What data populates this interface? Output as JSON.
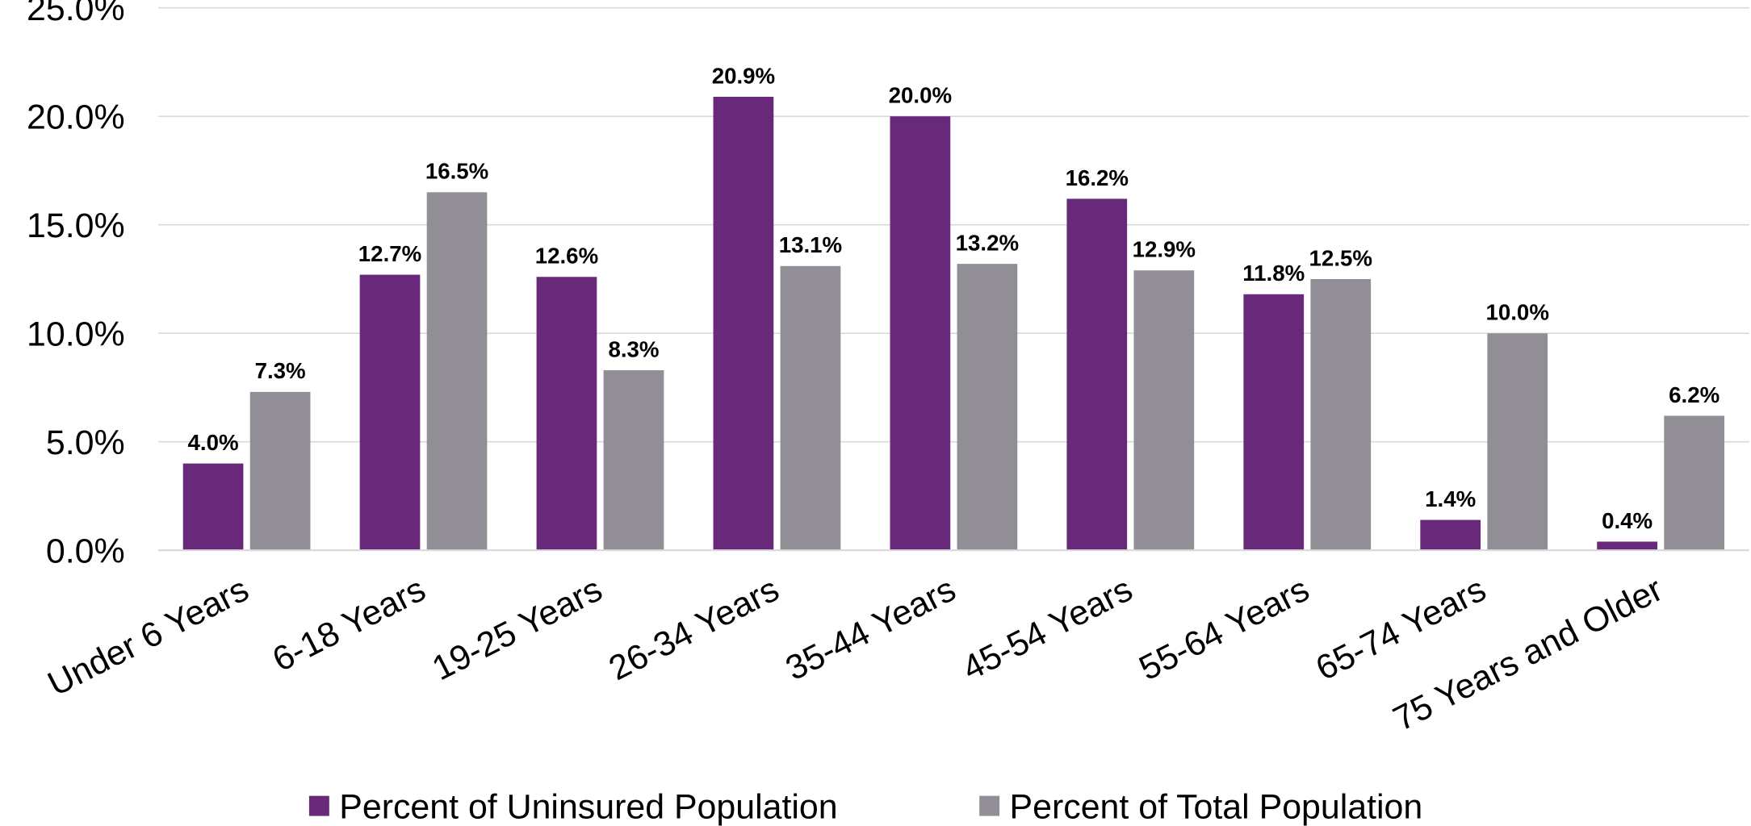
{
  "chart_data": {
    "type": "bar",
    "categories": [
      "Under 6 Years",
      "6-18 Years",
      "19-25 Years",
      "26-34 Years",
      "35-44 Years",
      "45-54 Years",
      "55-64 Years",
      "65-74 Years",
      "75 Years and Older"
    ],
    "series": [
      {
        "name": "Percent of Uninsured Population",
        "color": "#68297a",
        "values": [
          4.0,
          12.7,
          12.6,
          20.9,
          20.0,
          16.2,
          11.8,
          1.4,
          0.4
        ],
        "value_labels": [
          "4.0%",
          "12.7%",
          "12.6%",
          "20.9%",
          "20.0%",
          "16.2%",
          "11.8%",
          "1.4%",
          "0.4%"
        ]
      },
      {
        "name": "Percent of Total Population",
        "color": "#918f95",
        "values": [
          7.3,
          16.5,
          8.3,
          13.1,
          13.2,
          12.9,
          12.5,
          10.0,
          6.2
        ],
        "value_labels": [
          "7.3%",
          "16.5%",
          "8.3%",
          "13.1%",
          "13.2%",
          "12.9%",
          "12.5%",
          "10.0%",
          "6.2%"
        ]
      }
    ],
    "ylim": [
      0,
      25
    ],
    "yticks": [
      {
        "value": 0,
        "label": "0.0%"
      },
      {
        "value": 5,
        "label": "5.0%"
      },
      {
        "value": 10,
        "label": "10.0%"
      },
      {
        "value": 15,
        "label": "15.0%"
      },
      {
        "value": 20,
        "label": "20.0%"
      },
      {
        "value": 25,
        "label": "25.0%"
      }
    ],
    "grid": true,
    "legend": "bottom"
  }
}
